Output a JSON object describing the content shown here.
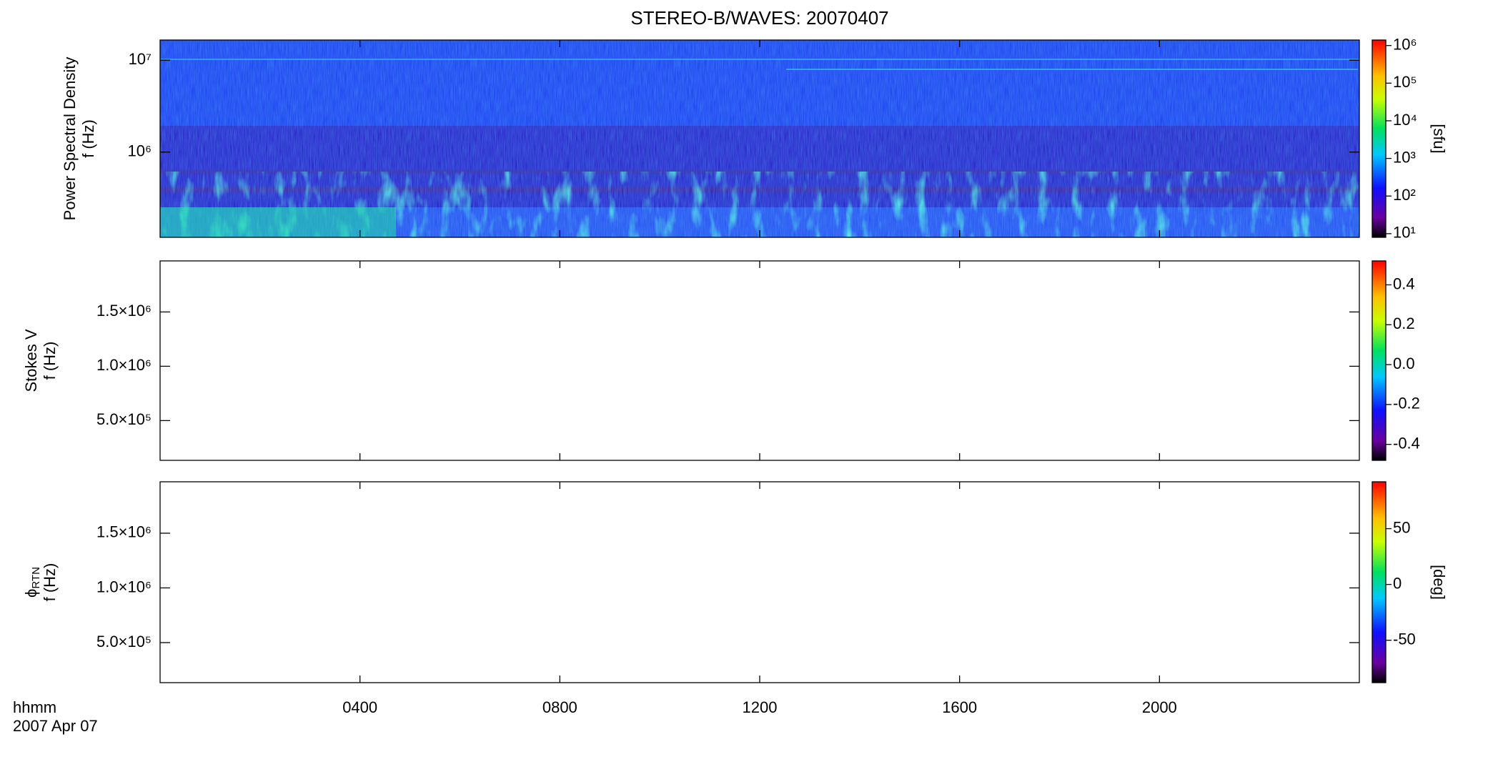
{
  "chart_data": [
    {
      "type": "spectrogram",
      "title": "STEREO-B/WAVES: 20070407",
      "ylabel": [
        "Power Spectral Density",
        "f (Hz)"
      ],
      "ylog": true,
      "xlim": [
        0,
        24
      ],
      "xticks": [
        {
          "value": 4,
          "label": "0400"
        },
        {
          "value": 8,
          "label": "0800"
        },
        {
          "value": 12,
          "label": "1200"
        },
        {
          "value": 16,
          "label": "1600"
        },
        {
          "value": 20,
          "label": "2000"
        }
      ],
      "ylim": [
        118000,
        16600000
      ],
      "yticks": [
        {
          "value": 1000000,
          "label": "10⁶"
        },
        {
          "value": 10000000,
          "label": "10⁷"
        }
      ],
      "colorbar": {
        "colormap": "rainbow",
        "log": true,
        "clim": [
          8,
          1400000
        ],
        "label": "[sfu]",
        "ticks": [
          {
            "value": 10,
            "label": "10¹"
          },
          {
            "value": 100,
            "label": "10²"
          },
          {
            "value": 1000,
            "label": "10³"
          },
          {
            "value": 10000,
            "label": "10⁴"
          },
          {
            "value": 100000,
            "label": "10⁵"
          },
          {
            "value": 1000000,
            "label": "10⁶"
          }
        ]
      }
    },
    {
      "type": "spectrogram",
      "ylabel": [
        "Stokes V",
        "f (Hz)"
      ],
      "ylog": false,
      "xlim": [
        0,
        24
      ],
      "xticks": [
        {
          "value": 4,
          "label": "0400"
        },
        {
          "value": 8,
          "label": "0800"
        },
        {
          "value": 12,
          "label": "1200"
        },
        {
          "value": 16,
          "label": "1600"
        },
        {
          "value": 20,
          "label": "2000"
        }
      ],
      "ylim": [
        134000,
        1970000
      ],
      "yticks": [
        {
          "value": 500000,
          "label": "5.0×10⁵"
        },
        {
          "value": 1000000,
          "label": "1.0×10⁶"
        },
        {
          "value": 1500000,
          "label": "1.5×10⁶"
        }
      ],
      "colorbar": {
        "colormap": "rainbow",
        "log": false,
        "clim": [
          -0.48,
          0.52
        ],
        "ticks": [
          -0.4,
          -0.2,
          {
            "value": 0,
            "label": "0.0"
          },
          0.2,
          0.4
        ]
      }
    },
    {
      "type": "spectrogram",
      "ylabel": [
        "ϕ",
        "f (Hz)"
      ],
      "ylabel_sub": "RTN",
      "ylog": false,
      "xlim": [
        0,
        24
      ],
      "xticks": [
        {
          "value": 4,
          "label": "0400"
        },
        {
          "value": 8,
          "label": "0800"
        },
        {
          "value": 12,
          "label": "1200"
        },
        {
          "value": 16,
          "label": "1600"
        },
        {
          "value": 20,
          "label": "2000"
        }
      ],
      "xlabel": [
        "hhmm",
        "2007 Apr 07"
      ],
      "ylim": [
        134000,
        1970000
      ],
      "yticks": [
        {
          "value": 500000,
          "label": "5.0×10⁵"
        },
        {
          "value": 1000000,
          "label": "1.0×10⁶"
        },
        {
          "value": 1500000,
          "label": "1.5×10⁶"
        }
      ],
      "colorbar": {
        "colormap": "rainbow",
        "log": false,
        "clim": [
          -88,
          92
        ],
        "label": "[deg]",
        "ticks": [
          -50,
          0,
          50
        ]
      }
    }
  ]
}
